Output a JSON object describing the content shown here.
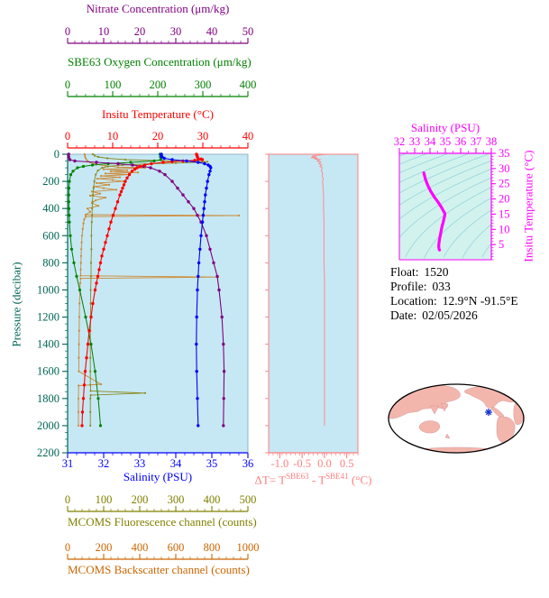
{
  "figure": {
    "background": "#ffffff"
  },
  "info": {
    "rows": [
      {
        "label": "Float:",
        "value": "1520"
      },
      {
        "label": "Profile:",
        "value": "033"
      },
      {
        "label": "Location:",
        "value": "12.9°N -91.5°E"
      },
      {
        "label": "Date:",
        "value": "02/05/2026"
      }
    ]
  },
  "map": {
    "outline": "#000000",
    "ocean": "#ffffff",
    "land": "#f3b6ad",
    "marker_color": "#1133cc",
    "marker_icon": "asterisk-marker-icon"
  },
  "chart_data": [
    {
      "id": "profile-plot",
      "type": "line",
      "background": "#c6e8f4",
      "y_axis": {
        "id": "pressure",
        "label": "Pressure (decibar)",
        "color": "#006655",
        "range": [
          0,
          2200
        ],
        "ticks": [
          0,
          200,
          400,
          600,
          800,
          1000,
          1200,
          1400,
          1600,
          1800,
          2000,
          2200
        ],
        "minor": 50
      },
      "x_axes": [
        {
          "id": "nitrate",
          "label": "Nitrate Concentration (μm/kg)",
          "color": "#800080",
          "range": [
            0,
            50
          ],
          "ticks": [
            0,
            10,
            20,
            30,
            40,
            50
          ],
          "minor": 2
        },
        {
          "id": "oxygen",
          "label": "SBE63 Oxygen Concentration (μm/kg)",
          "color": "#008000",
          "range": [
            0,
            400
          ],
          "ticks": [
            0,
            100,
            200,
            300,
            400
          ],
          "minor": 20
        },
        {
          "id": "temperature",
          "label": "Insitu Temperature (°C)",
          "color": "#ff0000",
          "range": [
            0,
            40
          ],
          "ticks": [
            0,
            10,
            20,
            30,
            40
          ],
          "minor": 2
        },
        {
          "id": "salinity",
          "label": "Salinity (PSU)",
          "color": "#0000ff",
          "range": [
            31,
            36
          ],
          "ticks": [
            31,
            32,
            33,
            34,
            35,
            36
          ],
          "minor": 0.25
        },
        {
          "id": "fluorescence",
          "label": "MCOMS Fluorescence channel (counts)",
          "color": "#808000",
          "range": [
            0,
            500
          ],
          "ticks": [
            0,
            100,
            200,
            300,
            400,
            500
          ],
          "minor": 20
        },
        {
          "id": "backscatter",
          "label": "MCOMS Backscatter channel (counts)",
          "color": "#cc6600",
          "range": [
            0,
            1000
          ],
          "ticks": [
            0,
            200,
            400,
            600,
            800,
            1000
          ],
          "minor": 40
        }
      ],
      "series": [
        {
          "name": "backscatter",
          "axis": "backscatter",
          "color": "#cc8833",
          "width": 0.9,
          "markers": true,
          "marker_r": 1.1,
          "pressure": [
            0,
            15,
            30,
            45,
            60,
            75,
            85,
            95,
            100,
            110,
            118,
            126,
            134,
            142,
            150,
            160,
            170,
            180,
            190,
            200,
            212,
            225,
            238,
            250,
            262,
            275,
            290,
            305,
            320,
            340,
            360,
            380,
            400,
            425,
            445,
            452,
            460,
            480,
            510,
            550,
            600,
            650,
            700,
            750,
            800,
            850,
            895,
            905,
            915,
            950,
            1000,
            1100,
            1200,
            1300,
            1400,
            1500,
            1600,
            1695,
            1705,
            1800,
            1900,
            2000
          ],
          "values": [
            95,
            96,
            100,
            108,
            125,
            160,
            210,
            280,
            430,
            200,
            330,
            240,
            390,
            210,
            340,
            185,
            290,
            165,
            250,
            310,
            160,
            230,
            145,
            200,
            270,
            135,
            180,
            125,
            210,
            155,
            135,
            170,
            110,
            125,
            100,
            950,
            100,
            92,
            88,
            84,
            80,
            78,
            76,
            75,
            74,
            73,
            72,
            835,
            72,
            70,
            68,
            66,
            65,
            64,
            63,
            62,
            62,
            185,
            61,
            60,
            60,
            60
          ]
        },
        {
          "name": "fluorescence",
          "axis": "fluorescence",
          "color": "#8a8a22",
          "width": 0.9,
          "markers": true,
          "marker_r": 1.1,
          "pressure": [
            0,
            10,
            20,
            30,
            40,
            45,
            50,
            55,
            60,
            65,
            70,
            80,
            90,
            100,
            120,
            150,
            200,
            250,
            300,
            350,
            400,
            450,
            500,
            600,
            700,
            800,
            900,
            1000,
            1100,
            1200,
            1300,
            1400,
            1500,
            1600,
            1700,
            1745,
            1760,
            1775,
            1800,
            1900,
            2000
          ],
          "values": [
            70,
            75,
            85,
            110,
            160,
            240,
            330,
            388,
            362,
            300,
            232,
            152,
            112,
            96,
            84,
            78,
            74,
            72,
            70,
            69,
            68,
            68,
            67,
            66,
            66,
            65,
            65,
            64,
            64,
            64,
            63,
            63,
            63,
            63,
            63,
            64,
            215,
            64,
            63,
            63,
            63
          ]
        },
        {
          "name": "oxygen",
          "axis": "oxygen",
          "color": "#008000",
          "width": 1,
          "markers": true,
          "marker_r": 1.6,
          "pressure": [
            0,
            20,
            40,
            50,
            60,
            70,
            80,
            90,
            100,
            125,
            150,
            200,
            250,
            300,
            350,
            400,
            450,
            500,
            600,
            700,
            800,
            900,
            1000,
            1200,
            1400,
            1600,
            1800,
            2000
          ],
          "values": [
            205,
            206,
            207,
            192,
            140,
            90,
            55,
            35,
            22,
            12,
            7,
            4,
            3,
            2.5,
            2.5,
            3,
            3.5,
            4,
            6,
            9,
            14,
            20,
            27,
            40,
            52,
            61,
            68,
            73
          ]
        },
        {
          "name": "nitrate",
          "axis": "nitrate",
          "color": "#800080",
          "width": 1.1,
          "markers": true,
          "marker_r": 1.7,
          "pressure": [
            0,
            20,
            40,
            50,
            60,
            70,
            80,
            90,
            100,
            125,
            150,
            200,
            250,
            300,
            350,
            400,
            450,
            500,
            600,
            700,
            800,
            900,
            1000,
            1200,
            1400,
            1600,
            1800,
            2000
          ],
          "values": [
            0.3,
            0.3,
            0.6,
            2.0,
            8.0,
            14.0,
            18.0,
            21.0,
            23.0,
            25.5,
            27.0,
            29.0,
            30.5,
            32.0,
            33.5,
            35.0,
            36.0,
            37.0,
            38.5,
            39.5,
            40.5,
            41.5,
            42.0,
            42.8,
            43.2,
            43.4,
            43.3,
            43.2
          ]
        },
        {
          "name": "temperature",
          "axis": "temperature",
          "color": "#ff0000",
          "width": 1.1,
          "markers": true,
          "marker_r": 1.7,
          "pressure": [
            0,
            10,
            20,
            30,
            35,
            40,
            45,
            50,
            55,
            60,
            70,
            80,
            90,
            100,
            110,
            125,
            150,
            175,
            200,
            225,
            250,
            275,
            300,
            350,
            400,
            450,
            500,
            550,
            600,
            650,
            700,
            750,
            800,
            850,
            900,
            950,
            1000,
            1100,
            1200,
            1300,
            1400,
            1500,
            1600,
            1700,
            1800,
            1900,
            2000
          ],
          "values": [
            28.6,
            28.7,
            28.8,
            28.9,
            29.6,
            29.9,
            28.2,
            25.6,
            23.2,
            21.2,
            18.6,
            17.1,
            16.1,
            15.4,
            14.9,
            14.3,
            13.7,
            13.2,
            12.8,
            12.5,
            12.2,
            11.9,
            11.6,
            11.1,
            10.6,
            10.1,
            9.6,
            9.2,
            8.8,
            8.4,
            8.0,
            7.6,
            7.3,
            7.0,
            6.7,
            6.4,
            6.1,
            5.6,
            5.2,
            4.8,
            4.5,
            4.2,
            3.9,
            3.7,
            3.5,
            3.3,
            3.2
          ]
        },
        {
          "name": "salinity",
          "axis": "salinity",
          "color": "#0000ff",
          "width": 1.1,
          "markers": true,
          "marker_r": 1.7,
          "pressure": [
            0,
            10,
            20,
            30,
            40,
            50,
            60,
            70,
            80,
            90,
            100,
            125,
            150,
            200,
            250,
            300,
            350,
            400,
            450,
            500,
            600,
            700,
            800,
            900,
            1000,
            1200,
            1400,
            1600,
            1800,
            2000
          ],
          "values": [
            33.6,
            33.6,
            33.62,
            33.68,
            33.9,
            34.3,
            34.62,
            34.8,
            34.9,
            34.95,
            34.97,
            34.95,
            34.92,
            34.88,
            34.85,
            34.82,
            34.8,
            34.78,
            34.76,
            34.74,
            34.7,
            34.67,
            34.64,
            34.62,
            34.6,
            34.58,
            34.57,
            34.58,
            34.6,
            34.62
          ]
        }
      ]
    },
    {
      "id": "temp-difference-plot",
      "type": "line",
      "background": "#c6e8f4",
      "x_axis": {
        "id": "delta-t",
        "color": "#ff7f7f",
        "range": [
          -1.25,
          0.75
        ],
        "ticks": [
          "-1.0",
          "-0.5",
          "0.0",
          "0.5"
        ],
        "minor": 0.1,
        "label_parts": {
          "p1": "ΔT= T",
          "s1": "SBE63",
          "p2": " - T",
          "s2": "SBE41",
          "p3": " (°C)"
        }
      },
      "y_axis": {
        "shared": "pressure"
      },
      "series": [
        {
          "name": "delta-T",
          "color": "#ff8a8a",
          "width": 1,
          "markers": false,
          "pressure": [
            0,
            5,
            10,
            15,
            20,
            25,
            30,
            35,
            40,
            50,
            60,
            70,
            80,
            90,
            100,
            120,
            140,
            160,
            180,
            200,
            250,
            300,
            350,
            400,
            500,
            600,
            700,
            800,
            900,
            1000,
            1200,
            1400,
            1600,
            1800,
            2000
          ],
          "values": [
            0.05,
            -0.1,
            -0.22,
            -0.28,
            -0.18,
            -0.3,
            -0.15,
            -0.22,
            -0.1,
            -0.16,
            -0.08,
            -0.12,
            -0.06,
            -0.1,
            -0.05,
            -0.07,
            -0.04,
            -0.05,
            -0.03,
            -0.04,
            -0.03,
            -0.02,
            -0.02,
            -0.02,
            -0.01,
            -0.01,
            -0.01,
            -0.01,
            0.0,
            0.0,
            0.0,
            0.0,
            0.0,
            0.0,
            0.0
          ]
        }
      ]
    },
    {
      "id": "ts-diagram",
      "type": "line",
      "background": "#d2f2ee",
      "x_axis": {
        "id": "ts-salinity",
        "label": "Salinity (PSU)",
        "color": "#ff00ff",
        "range": [
          32,
          38
        ],
        "ticks": [
          32,
          33,
          34,
          35,
          36,
          37,
          38
        ],
        "minor": 0.5
      },
      "y_axis": {
        "id": "ts-temperature",
        "label": "Insitu Temperature (°C)",
        "color": "#ff00ff",
        "range": [
          0,
          35
        ],
        "ticks": [
          5,
          10,
          15,
          20,
          25,
          30,
          35
        ],
        "minor": 1
      },
      "contours": {
        "levels": [
          18,
          19,
          20,
          21,
          22,
          23,
          24,
          25,
          26,
          27,
          28,
          29,
          30
        ],
        "color": "#8fd2d5"
      },
      "series": [
        {
          "name": "ts-curve",
          "color": "#ff00ff",
          "salinity": [
            33.6,
            33.62,
            33.7,
            33.85,
            34.05,
            34.3,
            34.55,
            34.75,
            34.88,
            34.95,
            34.97,
            34.95,
            34.92,
            34.88,
            34.85,
            34.8,
            34.76,
            34.72,
            34.68,
            34.64,
            34.61,
            34.59,
            34.57,
            34.57,
            34.59,
            34.62
          ],
          "temperature": [
            28.6,
            28.2,
            26.5,
            24.5,
            22.5,
            20.5,
            18.8,
            17.2,
            16.0,
            15.4,
            15.0,
            14.3,
            13.7,
            12.8,
            12.2,
            11.3,
            10.3,
            9.3,
            8.3,
            7.3,
            6.4,
            5.6,
            4.8,
            4.2,
            3.6,
            3.2
          ]
        }
      ]
    }
  ]
}
